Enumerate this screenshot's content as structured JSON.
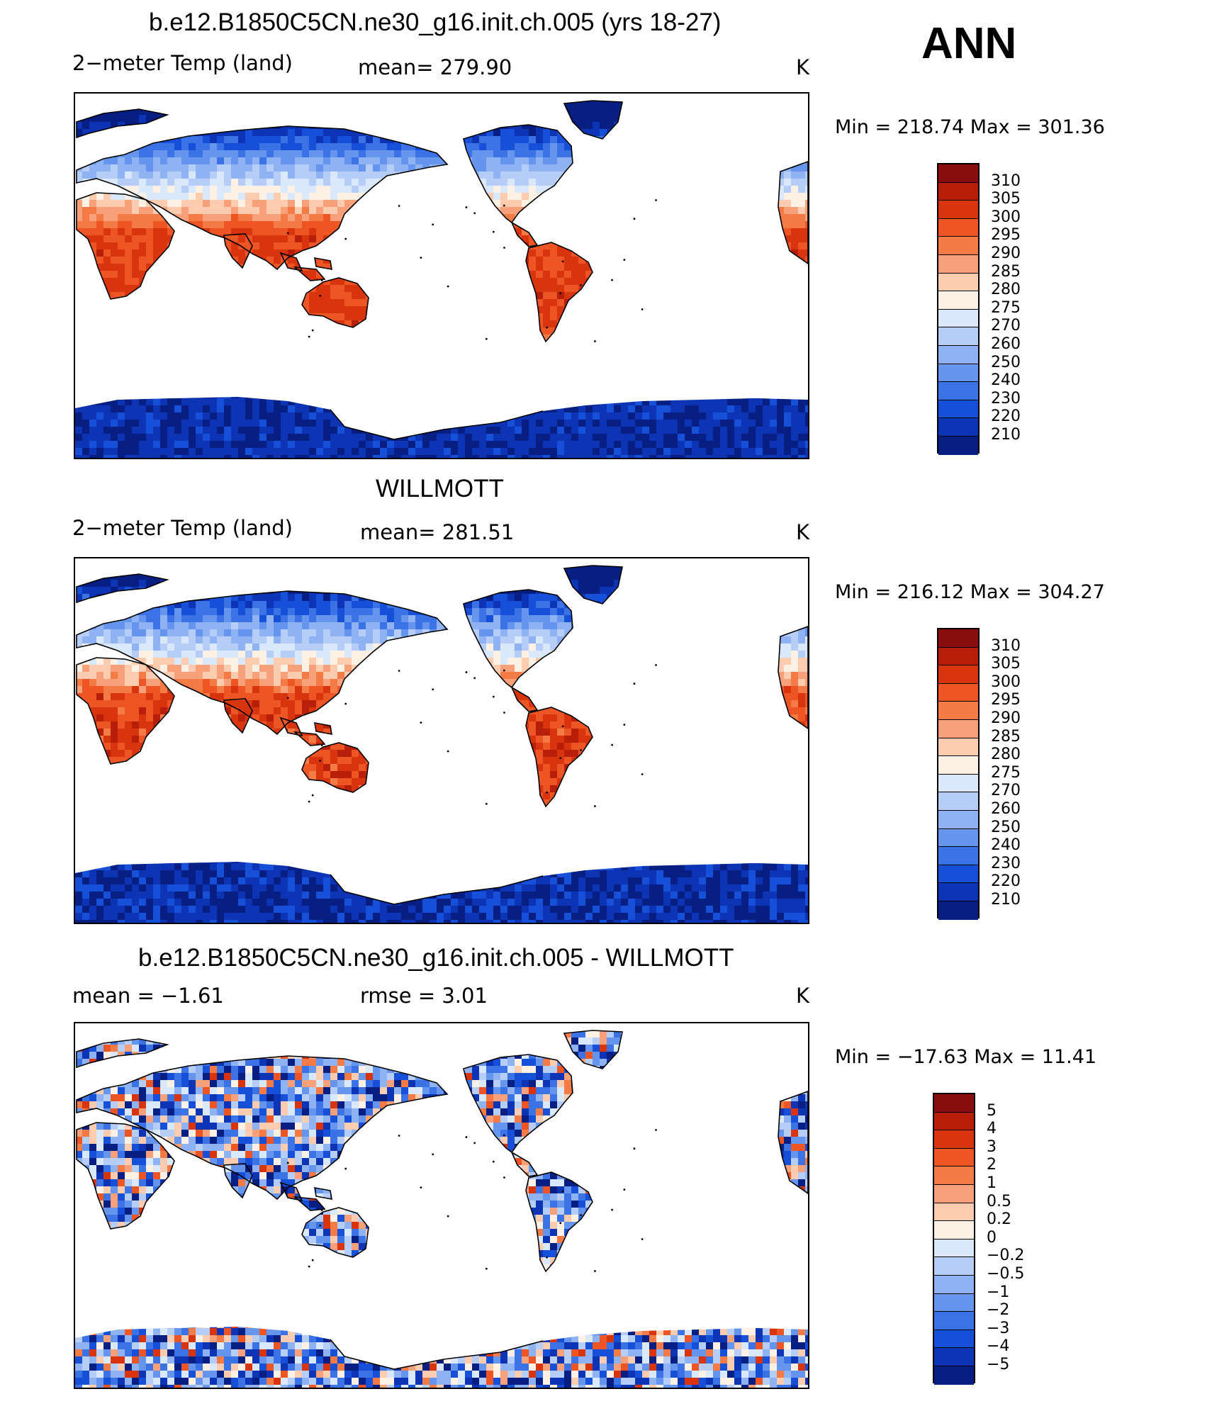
{
  "season": "ANN",
  "panels": [
    {
      "title": "b.e12.B1850C5CN.ne30_g16.init.ch.005 (yrs 18-27)",
      "left": "2−meter Temp (land)",
      "mid": "mean=  279.90",
      "right": "K",
      "minmax": "Min  =  218.74  Max  =  301.36",
      "kind": "abs"
    },
    {
      "title": "WILLMOTT",
      "left": "2−meter Temp (land)",
      "mid": "mean=  281.51",
      "right": "K",
      "minmax": "Min  =  216.12  Max  =  304.27",
      "kind": "abs"
    },
    {
      "title": "b.e12.B1850C5CN.ne30_g16.init.ch.005 - WILLMOTT",
      "left": "mean  =    −1.61",
      "mid": "rmse  =     3.01",
      "right": "K",
      "minmax": "Min  =  −17.63  Max  =     11.41",
      "kind": "diff"
    }
  ],
  "colorbars": {
    "abs": {
      "labels": [
        "310",
        "305",
        "300",
        "295",
        "290",
        "285",
        "280",
        "275",
        "270",
        "260",
        "250",
        "240",
        "230",
        "220",
        "210"
      ],
      "colors": [
        "#8a0d0d",
        "#b71f0a",
        "#d8350f",
        "#ee5525",
        "#f47a46",
        "#f8a07a",
        "#fccbb0",
        "#fdf0e4",
        "#d9e8fb",
        "#b5cdf7",
        "#8fb2f2",
        "#6595ec",
        "#3b72e6",
        "#1750d8",
        "#0c34b4",
        "#071f83"
      ]
    },
    "diff": {
      "labels": [
        "5",
        "4",
        "3",
        "2",
        "1",
        "0.5",
        "0.2",
        "0",
        "−0.2",
        "−0.5",
        "−1",
        "−2",
        "−3",
        "−4",
        "−5"
      ],
      "colors": [
        "#8a0d0d",
        "#b71f0a",
        "#d8350f",
        "#ee5525",
        "#f47a46",
        "#f8a07a",
        "#fccbb0",
        "#fdf0e4",
        "#d9e8fb",
        "#b5cdf7",
        "#8fb2f2",
        "#6595ec",
        "#3b72e6",
        "#1750d8",
        "#0c34b4",
        "#071f83"
      ]
    }
  }
}
